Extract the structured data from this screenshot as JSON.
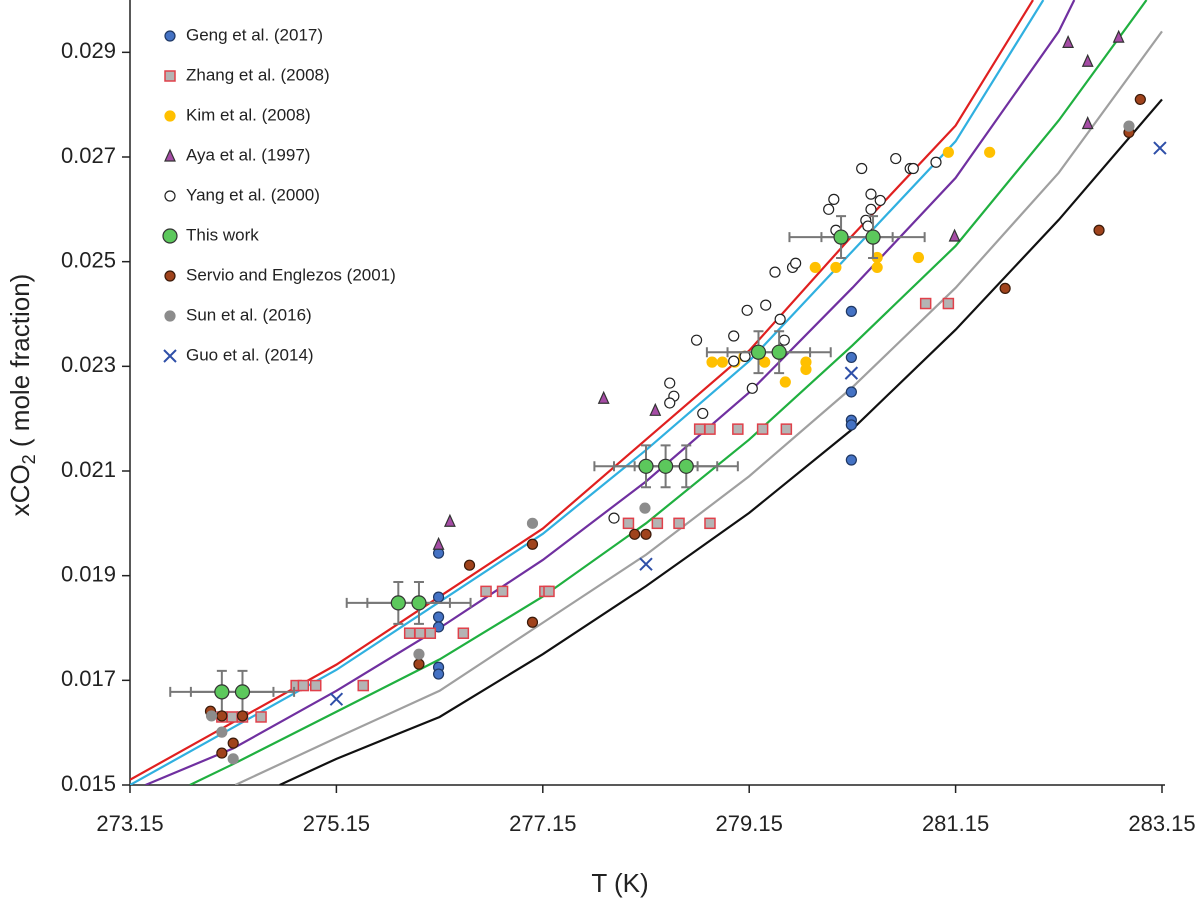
{
  "chart_data": {
    "type": "scatter",
    "xlabel": "T (K)",
    "ylabel": {
      "main": "xCO",
      "sub": "2",
      "rest": " ( mole fraction)"
    },
    "xlim": [
      273.15,
      283.15
    ],
    "ylim": [
      0.015,
      0.03
    ],
    "xticks": [
      273.15,
      275.15,
      277.15,
      279.15,
      281.15,
      283.15
    ],
    "yticks": [
      0.015,
      0.017,
      0.019,
      0.021,
      0.023,
      0.025,
      0.027,
      0.029
    ],
    "legend": "upper left",
    "series": [
      {
        "name": "Geng et al. (2017)",
        "marker": "circle",
        "color": "#4472c4",
        "edge": "#1f3864",
        "x": [
          276.14,
          276.14,
          276.14,
          276.14,
          276.14,
          276.14,
          280.14,
          280.14,
          280.14,
          280.14,
          280.14,
          280.14
        ],
        "y": [
          0.01943,
          0.01859,
          0.01821,
          0.01802,
          0.01725,
          0.01712,
          0.02405,
          0.02317,
          0.02251,
          0.02197,
          0.02188,
          0.02121
        ]
      },
      {
        "name": "Zhang et al. (2008)",
        "marker": "square",
        "color": "#b4b4b4",
        "edge": "#e0404a",
        "x": [
          274.76,
          274.83,
          274.95,
          275.41,
          275.86,
          275.96,
          276.06,
          276.38,
          276.6,
          276.76,
          277.17,
          277.21,
          274.04,
          274.14,
          274.24,
          274.42,
          277.98,
          278.26,
          278.47,
          278.77,
          278.67,
          278.77,
          279.04,
          279.28,
          279.51,
          280.86,
          281.08
        ],
        "y": [
          0.0169,
          0.0169,
          0.0169,
          0.0169,
          0.0179,
          0.0179,
          0.0179,
          0.0179,
          0.0187,
          0.0187,
          0.0187,
          0.0187,
          0.0163,
          0.0163,
          0.0163,
          0.0163,
          0.02,
          0.02,
          0.02,
          0.02,
          0.0218,
          0.0218,
          0.0218,
          0.0218,
          0.0218,
          0.0242,
          0.0242
        ]
      },
      {
        "name": "Kim et al. (2008)",
        "marker": "circle",
        "color": "#ffc000",
        "edge": "#ffc000",
        "x": [
          278.79,
          278.89,
          279.01,
          279.1,
          279.3,
          279.5,
          279.7,
          279.7,
          279.79,
          279.99,
          280.39,
          280.39,
          280.79,
          281.08,
          281.48
        ],
        "y": [
          0.02308,
          0.02308,
          0.02308,
          0.02319,
          0.02308,
          0.0227,
          0.02308,
          0.02294,
          0.02489,
          0.02489,
          0.02508,
          0.02489,
          0.02508,
          0.02709,
          0.02709
        ]
      },
      {
        "name": "Aya et al. (1997)",
        "marker": "triangle",
        "color": "#a54ca5",
        "edge": "#333333",
        "x": [
          277.74,
          278.24,
          276.14,
          276.25,
          281.14,
          282.24,
          282.43,
          282.43,
          282.73
        ],
        "y": [
          0.02239,
          0.02216,
          0.0196,
          0.02004,
          0.02549,
          0.02919,
          0.02883,
          0.02764,
          0.02929
        ]
      },
      {
        "name": "Yang et al. (2000)",
        "marker": "circle",
        "color": "#ffffff",
        "edge": "#222222",
        "x": [
          277.84,
          278.42,
          278.38,
          278.38,
          278.64,
          278.7,
          279.0,
          279.0,
          279.11,
          279.13,
          279.18,
          279.31,
          279.4,
          279.45,
          279.49,
          279.57,
          279.6,
          279.92,
          279.97,
          279.99,
          280.24,
          280.28,
          280.3,
          280.33,
          280.33,
          280.42,
          280.57,
          280.71,
          280.74,
          280.96
        ],
        "y": [
          0.0201,
          0.02243,
          0.02268,
          0.0223,
          0.0235,
          0.0221,
          0.02358,
          0.0231,
          0.02319,
          0.02407,
          0.02258,
          0.02417,
          0.0248,
          0.0239,
          0.0235,
          0.02489,
          0.02497,
          0.026,
          0.02619,
          0.0256,
          0.02678,
          0.02579,
          0.02568,
          0.02629,
          0.026,
          0.02617,
          0.02697,
          0.02678,
          0.02678,
          0.0269
        ]
      },
      {
        "name": "This work",
        "marker": "circle",
        "color": "#5cc85c",
        "edge": "#333333",
        "size": 7,
        "x": [
          274.04,
          274.24,
          275.75,
          275.95,
          278.15,
          278.34,
          278.54,
          279.24,
          279.44,
          280.04,
          280.35
        ],
        "y": [
          0.01678,
          0.01678,
          0.01848,
          0.01848,
          0.02109,
          0.02109,
          0.02109,
          0.02327,
          0.02327,
          0.02547,
          0.02547
        ],
        "xerr": 0.5,
        "yerr": 0.0004
      },
      {
        "name": "Servio and Englezos (2001)",
        "marker": "circle",
        "color": "#a0431c",
        "edge": "#3a1a0a",
        "x": [
          273.93,
          274.04,
          274.24,
          274.15,
          274.04,
          275.95,
          276.44,
          277.05,
          277.05,
          278.04,
          278.15,
          281.63,
          282.54,
          282.83,
          282.94
        ],
        "y": [
          0.01641,
          0.01632,
          0.01632,
          0.0158,
          0.01561,
          0.01731,
          0.0192,
          0.0196,
          0.01811,
          0.01979,
          0.01979,
          0.02449,
          0.0256,
          0.02747,
          0.0281
        ]
      },
      {
        "name": "Sun et al. (2016)",
        "marker": "circle",
        "color": "#8c8c8c",
        "edge": "#8c8c8c",
        "x": [
          273.94,
          274.04,
          274.15,
          275.95,
          277.05,
          278.14,
          282.83
        ],
        "y": [
          0.01632,
          0.01601,
          0.0155,
          0.0175,
          0.02,
          0.02029,
          0.02759
        ]
      },
      {
        "name": "Guo et al. (2014)",
        "marker": "x",
        "color": "#2e4fa8",
        "edge": "#2e4fa8",
        "x": [
          275.15,
          278.15,
          280.14,
          283.13
        ],
        "y": [
          0.01664,
          0.01922,
          0.02287,
          0.02717
        ]
      }
    ],
    "lines": [
      {
        "color": "#e02020",
        "x": [
          273.15,
          274.15,
          275.15,
          276.15,
          277.15,
          278.15,
          279.15,
          280.15,
          281.15,
          281.9
        ],
        "y": [
          0.0151,
          0.0162,
          0.0173,
          0.0186,
          0.0199,
          0.0216,
          0.0233,
          0.0255,
          0.0276,
          0.03
        ]
      },
      {
        "color": "#30b0e0",
        "x": [
          273.15,
          274.15,
          275.15,
          276.15,
          277.15,
          278.15,
          279.15,
          280.15,
          281.15,
          282.0
        ],
        "y": [
          0.015,
          0.0161,
          0.0172,
          0.0185,
          0.0198,
          0.0214,
          0.0231,
          0.0252,
          0.0273,
          0.03
        ]
      },
      {
        "color": "#7030a0",
        "x": [
          273.3,
          274.15,
          275.15,
          276.15,
          277.15,
          278.15,
          279.15,
          280.15,
          281.15,
          282.15,
          282.3
        ],
        "y": [
          0.015,
          0.0157,
          0.0168,
          0.018,
          0.0193,
          0.0208,
          0.0225,
          0.0245,
          0.0266,
          0.0294,
          0.03
        ]
      },
      {
        "color": "#20b040",
        "x": [
          273.73,
          274.15,
          275.15,
          276.15,
          277.15,
          278.15,
          279.15,
          280.15,
          281.15,
          282.15,
          283.0
        ],
        "y": [
          0.015,
          0.0154,
          0.0164,
          0.0174,
          0.0186,
          0.02,
          0.0216,
          0.0234,
          0.0253,
          0.0277,
          0.03
        ]
      },
      {
        "color": "#a0a0a0",
        "x": [
          274.17,
          275.15,
          276.15,
          277.15,
          278.15,
          279.15,
          280.15,
          281.15,
          282.15,
          283.15
        ],
        "y": [
          0.015,
          0.0159,
          0.0168,
          0.0181,
          0.0194,
          0.0209,
          0.0226,
          0.0245,
          0.0267,
          0.0294
        ]
      },
      {
        "color": "#111111",
        "x": [
          274.6,
          275.15,
          276.15,
          277.15,
          278.15,
          279.15,
          280.15,
          281.15,
          282.15,
          283.15
        ],
        "y": [
          0.015,
          0.0155,
          0.0163,
          0.0175,
          0.0188,
          0.0202,
          0.0218,
          0.0237,
          0.0258,
          0.0281
        ]
      }
    ]
  }
}
